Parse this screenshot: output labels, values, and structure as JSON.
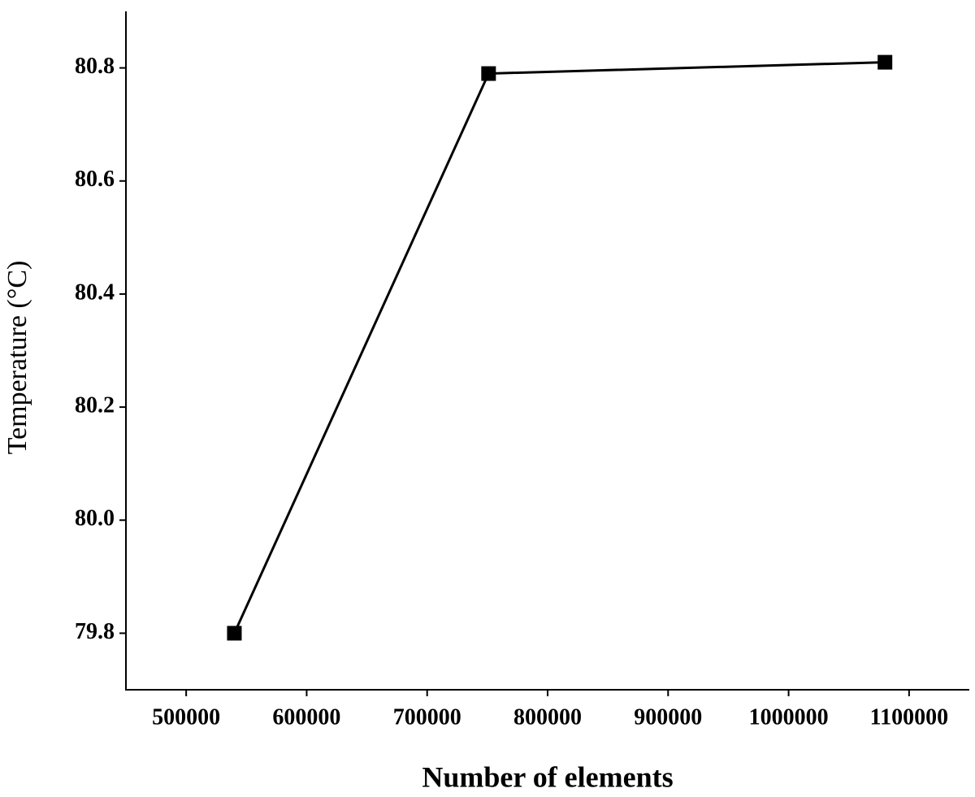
{
  "chart_data": {
    "type": "line",
    "x_label": "Number of elements",
    "y_label": "Temperature (°C)",
    "x": [
      540000,
      751000,
      1080000
    ],
    "series": [
      {
        "color": "#000000",
        "values": [
          79.8,
          80.79,
          80.81
        ]
      }
    ],
    "xlim": [
      450000,
      1150000
    ],
    "xticks": [
      500000,
      600000,
      700000,
      800000,
      900000,
      1000000,
      1100000
    ],
    "ylim": [
      79.7,
      80.9
    ],
    "yticks": [
      {
        "value": 79.8,
        "label": "79.8"
      },
      {
        "value": 80.0,
        "label": "80.0"
      },
      {
        "value": 80.2,
        "label": "80.2"
      },
      {
        "value": 80.4,
        "label": "80.4"
      },
      {
        "value": 80.6,
        "label": "80.6"
      },
      {
        "value": 80.8,
        "label": "80.8"
      }
    ],
    "grid": false
  }
}
